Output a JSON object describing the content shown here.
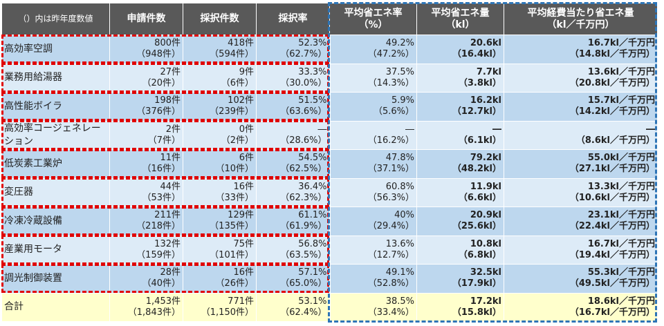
{
  "headers": [
    "（）内は昨年度数値",
    "申請件数",
    "採択件数",
    "採択率",
    "平均省エネ率\n（%）",
    "平均省エネ量\n（kl）",
    "平均経費当たり省エネ量\n（kl／千万円）"
  ],
  "rows": [
    {
      "name": "高効率空調",
      "c1": [
        "800件",
        "（948件）"
      ],
      "c2": [
        "418件",
        "（594件）"
      ],
      "c3": [
        "52.3%",
        "（62.7%）"
      ],
      "c4": [
        "49.2%",
        "（47.2%）"
      ],
      "c5": [
        "20.6kl",
        "（16.4kl）"
      ],
      "c6": [
        "16.7kl／千万円",
        "（14.8kl／千万円）"
      ]
    },
    {
      "name": "業務用給湯器",
      "c1": [
        "27件",
        "（20件）"
      ],
      "c2": [
        "9件",
        "（6件）"
      ],
      "c3": [
        "33.3%",
        "（30.0%）"
      ],
      "c4": [
        "37.5%",
        "（14.3%）"
      ],
      "c5": [
        "7.7kl",
        "（3.8kl）"
      ],
      "c6": [
        "13.6kl／千万円",
        "（20.8kl／千万円）"
      ]
    },
    {
      "name": "高性能ボイラ",
      "c1": [
        "198件",
        "（376件）"
      ],
      "c2": [
        "102件",
        "（239件）"
      ],
      "c3": [
        "51.5%",
        "（63.6%）"
      ],
      "c4": [
        "5.9%",
        "（5.6%）"
      ],
      "c5": [
        "16.2kl",
        "（12.7kl）"
      ],
      "c6": [
        "15.7kl／千万円",
        "（14.2kl／千万円）"
      ]
    },
    {
      "name": "高効率コージェネレーション",
      "c1": [
        "2件",
        "（7件）"
      ],
      "c2": [
        "0件",
        "（2件）"
      ],
      "c3": [
        "―",
        "（28.6%）"
      ],
      "c4": [
        "―",
        "（16.2%）"
      ],
      "c5": [
        "―",
        "（6.1kl）"
      ],
      "c6": [
        "―",
        "（8.6kl／千万円）"
      ]
    },
    {
      "name": "低炭素工業炉",
      "c1": [
        "11件",
        "（16件）"
      ],
      "c2": [
        "6件",
        "（10件）"
      ],
      "c3": [
        "54.5%",
        "（62.5%）"
      ],
      "c4": [
        "47.8%",
        "（37.1%）"
      ],
      "c5": [
        "79.2kl",
        "（48.2kl）"
      ],
      "c6": [
        "55.0kl／千万円",
        "（27.1kl／千万円）"
      ]
    },
    {
      "name": "変圧器",
      "c1": [
        "44件",
        "（53件）"
      ],
      "c2": [
        "16件",
        "（33件）"
      ],
      "c3": [
        "36.4%",
        "（62.3%）"
      ],
      "c4": [
        "60.8%",
        "（56.3%）"
      ],
      "c5": [
        "11.9kl",
        "（6.6kl）"
      ],
      "c6": [
        "13.3kl／千万円",
        "（10.6kl／千万円）"
      ]
    },
    {
      "name": "冷凍冷蔵設備",
      "c1": [
        "211件",
        "（218件）"
      ],
      "c2": [
        "129件",
        "（135件）"
      ],
      "c3": [
        "61.1%",
        "（61.9%）"
      ],
      "c4": [
        "40%",
        "（29.4%）"
      ],
      "c5": [
        "20.9kl",
        "（25.6kl）"
      ],
      "c6": [
        "23.1kl／千万円",
        "（22.4kl／千万円）"
      ]
    },
    {
      "name": "産業用モータ",
      "c1": [
        "132件",
        "（159件）"
      ],
      "c2": [
        "75件",
        "（101件）"
      ],
      "c3": [
        "56.8%",
        "（63.5%）"
      ],
      "c4": [
        "13.6%",
        "（12.7%）"
      ],
      "c5": [
        "10.8kl",
        "（6.8kl）"
      ],
      "c6": [
        "16.7kl／千万円",
        "（19.4kl／千万円）"
      ]
    },
    {
      "name": "調光制御装置",
      "c1": [
        "28件",
        "（40件）"
      ],
      "c2": [
        "16件",
        "（26件）"
      ],
      "c3": [
        "57.1%",
        "（65.0%）"
      ],
      "c4": [
        "49.1%",
        "（52.8%）"
      ],
      "c5": [
        "32.5kl",
        "（17.9kl）"
      ],
      "c6": [
        "55.3kl／千万円",
        "（49.5kl／千万円）"
      ]
    }
  ],
  "total": {
    "name": "合計",
    "c1": [
      "1,453件",
      "（1,843件）"
    ],
    "c2": [
      "771件",
      "（1,150件）"
    ],
    "c3": [
      "53.1%",
      "（62.4%）"
    ],
    "c4": [
      "38.5%",
      "（33.4%）"
    ],
    "c5": [
      "17.2kl",
      "（15.8kl）"
    ],
    "c6": [
      "18.6kl／千万円",
      "（16.7kl／千万円）"
    ]
  },
  "colors": {
    "header_bg": "#595959",
    "row_blue": "#bdd7ee",
    "row_light": "#ddebf7",
    "total_bg": "#ffffcc",
    "red_dash": "#e00000",
    "blue_dash": "#2e75b6"
  }
}
